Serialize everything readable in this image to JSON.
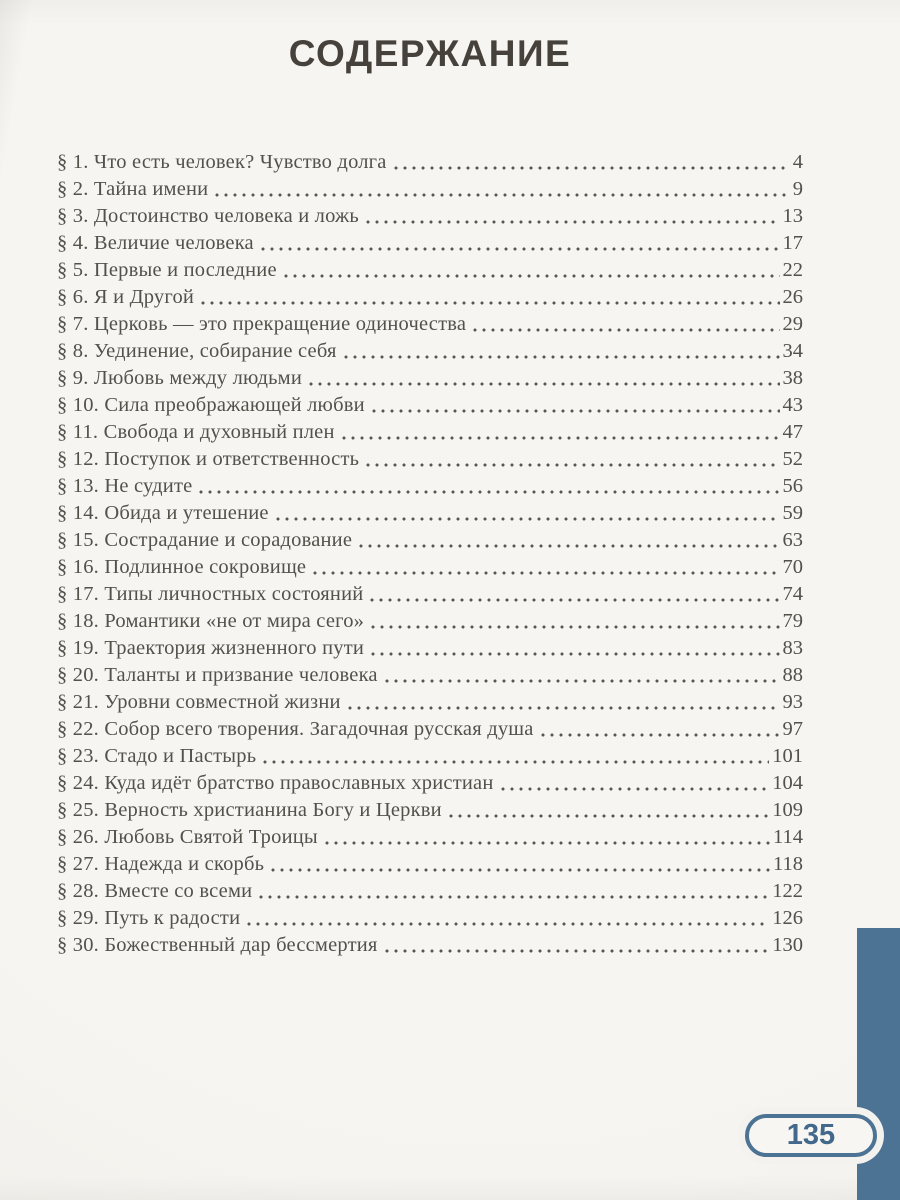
{
  "page": {
    "title": "СОДЕРЖАНИЕ",
    "page_number_badge": "135"
  },
  "toc": {
    "entries": [
      {
        "label": "§ 1. Что есть человек? Чувство долга",
        "page": "4"
      },
      {
        "label": "§ 2. Тайна имени",
        "page": "9"
      },
      {
        "label": "§ 3. Достоинство человека и ложь",
        "page": "13"
      },
      {
        "label": "§ 4. Величие человека",
        "page": "17"
      },
      {
        "label": "§ 5. Первые и последние",
        "page": "22"
      },
      {
        "label": "§ 6. Я и Другой",
        "page": "26"
      },
      {
        "label": "§ 7. Церковь — это прекращение одиночества",
        "page": "29"
      },
      {
        "label": "§ 8. Уединение, собирание себя",
        "page": "34"
      },
      {
        "label": "§ 9. Любовь между людьми",
        "page": "38"
      },
      {
        "label": "§ 10. Сила преображающей любви",
        "page": "43"
      },
      {
        "label": "§ 11. Свобода и духовный плен",
        "page": "47"
      },
      {
        "label": "§ 12. Поступок и ответственность",
        "page": "52"
      },
      {
        "label": "§ 13. Не судите",
        "page": "56"
      },
      {
        "label": "§ 14. Обида и утешение",
        "page": "59"
      },
      {
        "label": "§ 15. Сострадание и сорадование",
        "page": "63"
      },
      {
        "label": "§ 16. Подлинное сокровище",
        "page": "70"
      },
      {
        "label": "§ 17. Типы личностных состояний",
        "page": "74"
      },
      {
        "label": "§ 18. Романтики «не от мира сего»",
        "page": "79"
      },
      {
        "label": "§ 19. Траектория жизненного пути",
        "page": "83"
      },
      {
        "label": "§ 20. Таланты и призвание человека",
        "page": "88"
      },
      {
        "label": "§ 21. Уровни совместной жизни",
        "page": "93"
      },
      {
        "label": "§ 22. Собор всего творения. Загадочная русская душа",
        "page": "97"
      },
      {
        "label": "§ 23. Стадо и Пастырь",
        "page": "101"
      },
      {
        "label": "§ 24. Куда идёт братство православных христиан",
        "page": "104"
      },
      {
        "label": "§ 25. Верность христианина Богу и Церкви",
        "page": "109"
      },
      {
        "label": "§ 26. Любовь Святой Троицы",
        "page": "114"
      },
      {
        "label": "§ 27. Надежда и скорбь",
        "page": "118"
      },
      {
        "label": "§ 28. Вместе со всеми",
        "page": "122"
      },
      {
        "label": "§ 29. Путь к радости",
        "page": "126"
      },
      {
        "label": "§ 30. Божественный дар бессмертия",
        "page": "130"
      }
    ]
  },
  "colors": {
    "accent_blue": "#4d7394",
    "text_ink": "#54504a",
    "title_ink": "#47413c",
    "paper": "#f4f2ee"
  }
}
